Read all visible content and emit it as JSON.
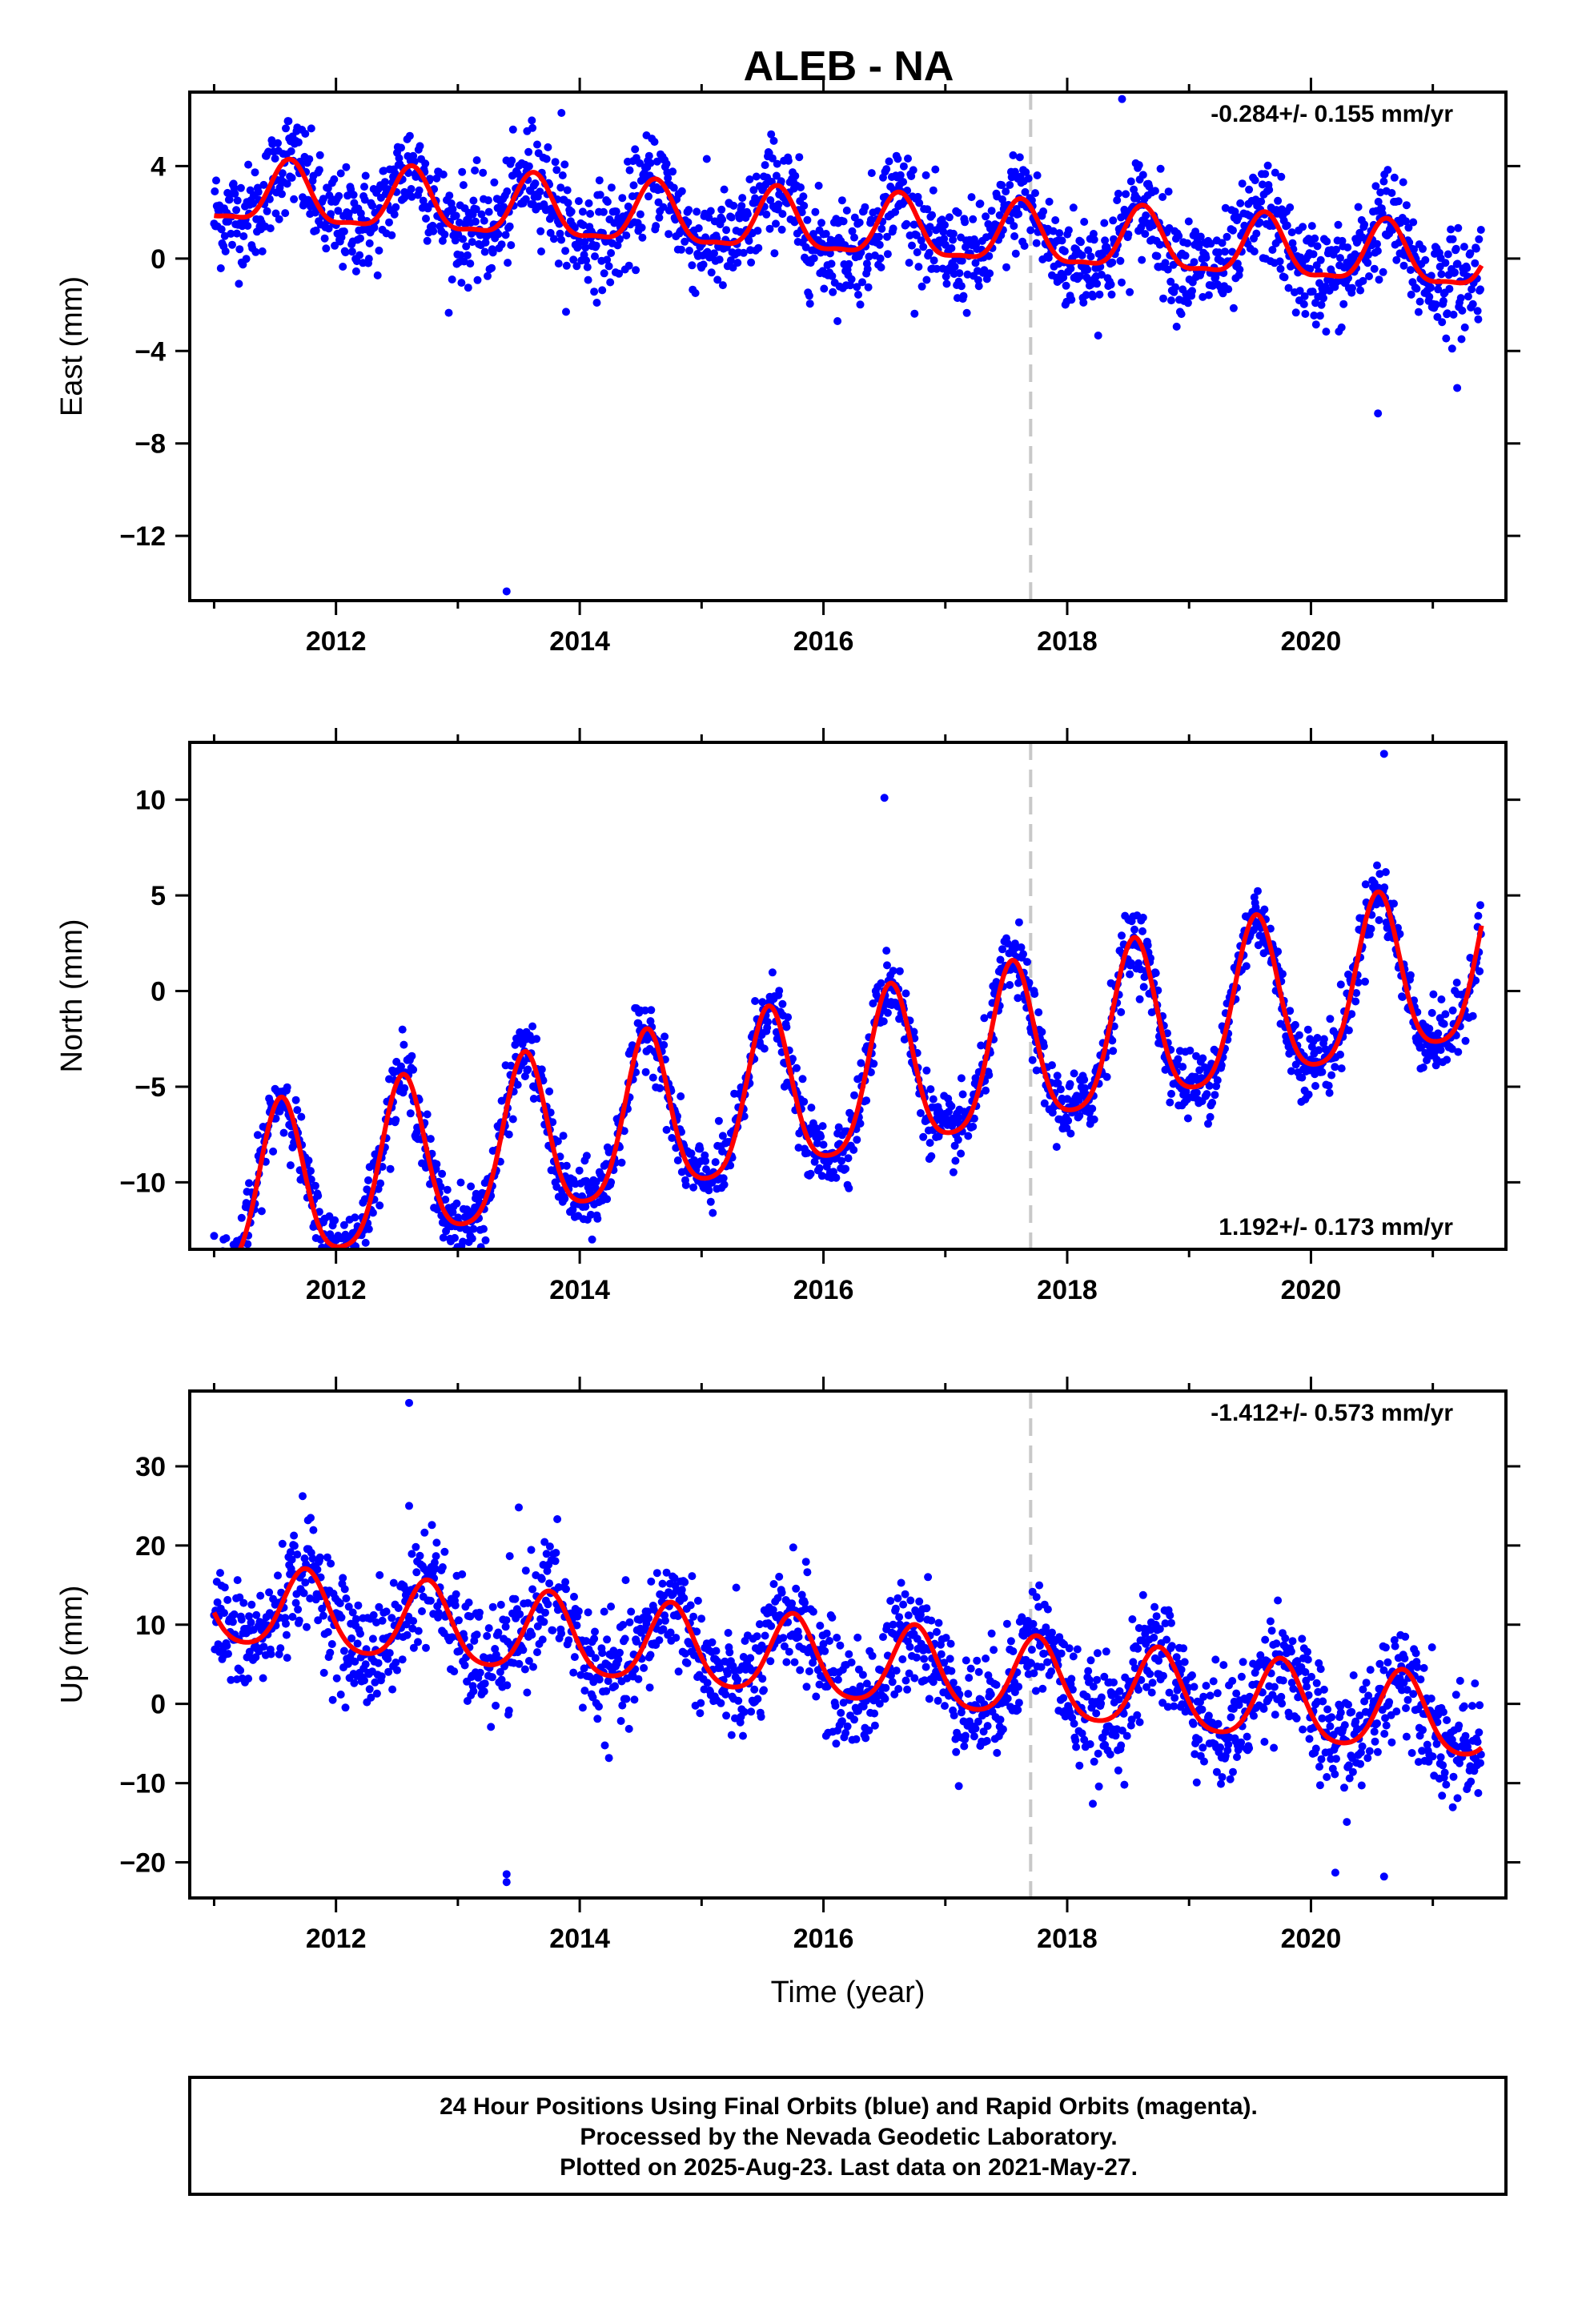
{
  "title": "ALEB - NA",
  "footer": {
    "line1": "24 Hour Positions Using Final Orbits (blue) and Rapid Orbits (magenta).",
    "line2": "Processed by the Nevada Geodetic Laboratory.",
    "line3": "Plotted on 2025-Aug-23. Last data on 2021-May-27."
  },
  "colors": {
    "points": "#0000ff",
    "model": "#ff0000",
    "vline": "#c8c8c8",
    "axis": "#000000"
  },
  "chart_data": [
    {
      "type": "scatter",
      "ylabel": "East (mm)",
      "xlabel": "",
      "rate": "-0.284+/- 0.155 mm/yr",
      "rate_position": "top-right",
      "xlim": [
        2010.8,
        2021.6
      ],
      "ylim": [
        -14.8,
        7.2
      ],
      "yticks": [
        4,
        0,
        -4,
        -8,
        -12
      ],
      "ytick_labels": [
        "4",
        "0",
        "−4",
        "−8",
        "−12"
      ],
      "xticks": [
        2012,
        2014,
        2016,
        2018,
        2020
      ],
      "xtick_labels": [
        "2012",
        "2014",
        "2016",
        "2018",
        "2020"
      ],
      "vline_x": 2017.7,
      "model": {
        "start": 2011.0,
        "end": 2021.4,
        "offset": 1.3,
        "slope": -0.284,
        "annual": 1.3,
        "semiannual": 0.4,
        "phase_peak": 0.62
      },
      "noise": 1.1,
      "outliers": [
        [
          2013.4,
          -14.4
        ],
        [
          2018.45,
          6.9
        ],
        [
          2020.55,
          -6.7
        ],
        [
          2021.2,
          -5.6
        ],
        [
          2013.85,
          6.3
        ]
      ]
    },
    {
      "type": "scatter",
      "ylabel": "North (mm)",
      "xlabel": "",
      "rate": "1.192+/- 0.173 mm/yr",
      "rate_position": "bottom-right",
      "xlim": [
        2010.8,
        2021.6
      ],
      "ylim": [
        -13.5,
        13.0
      ],
      "yticks": [
        10,
        5,
        0,
        -5,
        -10
      ],
      "ytick_labels": [
        "10",
        "5",
        "0",
        "−5",
        "−10"
      ],
      "xticks": [
        2012,
        2014,
        2016,
        2018,
        2020
      ],
      "xtick_labels": [
        "2012",
        "2014",
        "2016",
        "2018",
        "2020"
      ],
      "vline_x": 2017.7,
      "model": {
        "start": 2011.0,
        "end": 2021.4,
        "offset": -5.0,
        "slope": 1.192,
        "annual": 4.2,
        "semiannual": 0.8,
        "phase_peak": 0.55
      },
      "noise": 0.9,
      "outliers": [
        [
          2011.0,
          -12.8
        ],
        [
          2016.5,
          10.1
        ],
        [
          2020.6,
          12.4
        ],
        [
          2017.2,
          -6.3
        ]
      ]
    },
    {
      "type": "scatter",
      "ylabel": "Up (mm)",
      "xlabel": "Time (year)",
      "rate": "-1.412+/- 0.573 mm/yr",
      "rate_position": "top-right",
      "xlim": [
        2010.8,
        2021.6
      ],
      "ylim": [
        -24.5,
        39.5
      ],
      "yticks": [
        30,
        20,
        10,
        0,
        -10,
        -20
      ],
      "ytick_labels": [
        "30",
        "20",
        "10",
        "0",
        "−10",
        "−20"
      ],
      "xticks": [
        2012,
        2014,
        2016,
        2018,
        2020
      ],
      "xtick_labels": [
        "2012",
        "2014",
        "2016",
        "2018",
        "2020"
      ],
      "vline_x": 2017.7,
      "model": {
        "start": 2011.0,
        "end": 2021.4,
        "offset": 5.0,
        "slope": -1.412,
        "annual": 5.0,
        "semiannual": 0.8,
        "phase_peak": 0.75
      },
      "noise": 3.5,
      "outliers": [
        [
          2012.6,
          38.0
        ],
        [
          2013.4,
          -21.5
        ],
        [
          2013.4,
          -22.5
        ],
        [
          2013.5,
          24.8
        ],
        [
          2012.6,
          25.0
        ],
        [
          2020.2,
          -21.3
        ],
        [
          2020.6,
          -21.8
        ]
      ]
    }
  ]
}
